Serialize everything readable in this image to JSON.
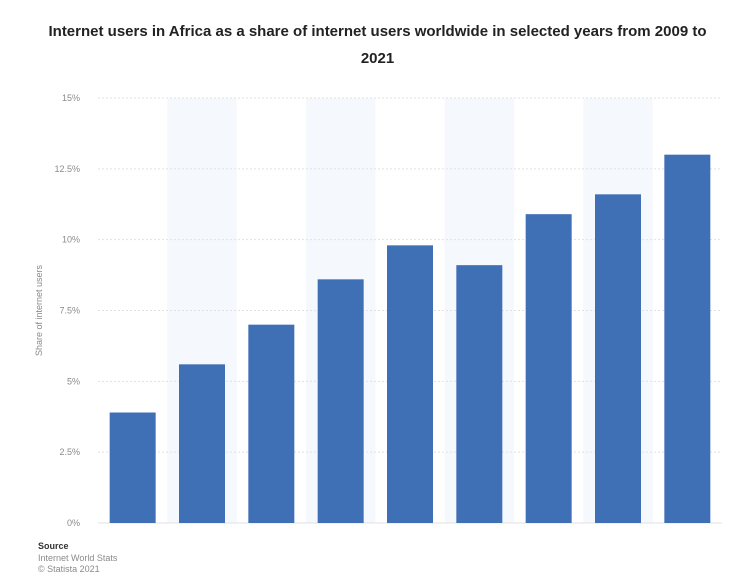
{
  "title": "Internet users in Africa as a share of internet users worldwide in selected years from 2009 to 2021",
  "source": {
    "label": "Source",
    "lines": [
      "Internet World Stats",
      "© Statista 2021"
    ]
  },
  "colors": {
    "bar": "#3f6fb5",
    "band": "#f5f8fc",
    "grid": "#e1e1e1"
  },
  "chart_data": {
    "type": "bar",
    "title": "Internet users in Africa as a share of internet users worldwide in selected years from 2009 to 2021",
    "categories": [
      "",
      "",
      "",
      "",
      "",
      "",
      "",
      "",
      ""
    ],
    "values": [
      3.9,
      5.6,
      7.0,
      8.6,
      9.8,
      9.1,
      10.9,
      11.6,
      13.0
    ],
    "ylabel": "Share of internet users",
    "xlabel": "",
    "ylim": [
      0,
      15
    ],
    "yticks": [
      0,
      2.5,
      5,
      7.5,
      10,
      12.5,
      15
    ],
    "ytick_labels": [
      "0%",
      "2.5%",
      "5%",
      "7.5%",
      "10%",
      "12.5%",
      "15%"
    ],
    "grid": true,
    "legend": "none"
  }
}
